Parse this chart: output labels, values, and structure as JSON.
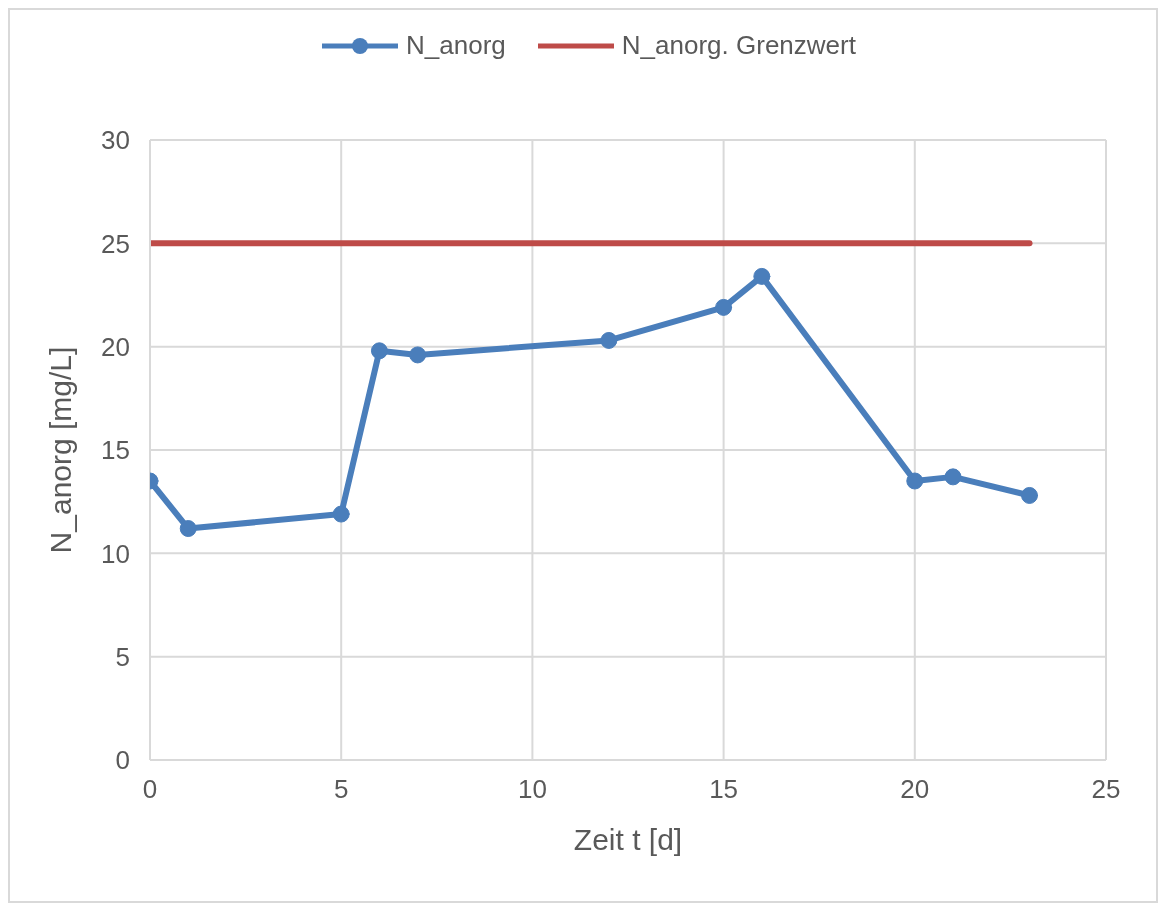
{
  "chart_data": {
    "type": "line",
    "xlabel": "Zeit t [d]",
    "ylabel": "N_anorg [mg/L]",
    "xlim": [
      0,
      25
    ],
    "xticks": [
      0,
      5,
      10,
      15,
      20,
      25
    ],
    "ylim": [
      0,
      30
    ],
    "yticks": [
      0,
      5,
      10,
      15,
      20,
      25,
      30
    ],
    "grid": true,
    "legend": "top",
    "line_style": "solid",
    "series": [
      {
        "name": "N_anorg",
        "color": "#4a7ebb",
        "marker": "circle",
        "x": [
          0,
          1,
          5,
          6,
          7,
          12,
          15,
          16,
          20,
          21,
          23
        ],
        "values": [
          13.5,
          11.2,
          11.9,
          19.8,
          19.6,
          20.3,
          21.9,
          23.4,
          13.5,
          13.7,
          12.8
        ]
      },
      {
        "name": "N_anorg. Grenzwert",
        "color": "#be4b48",
        "marker": "none",
        "x": [
          0,
          23
        ],
        "values": [
          25,
          25
        ]
      }
    ]
  }
}
